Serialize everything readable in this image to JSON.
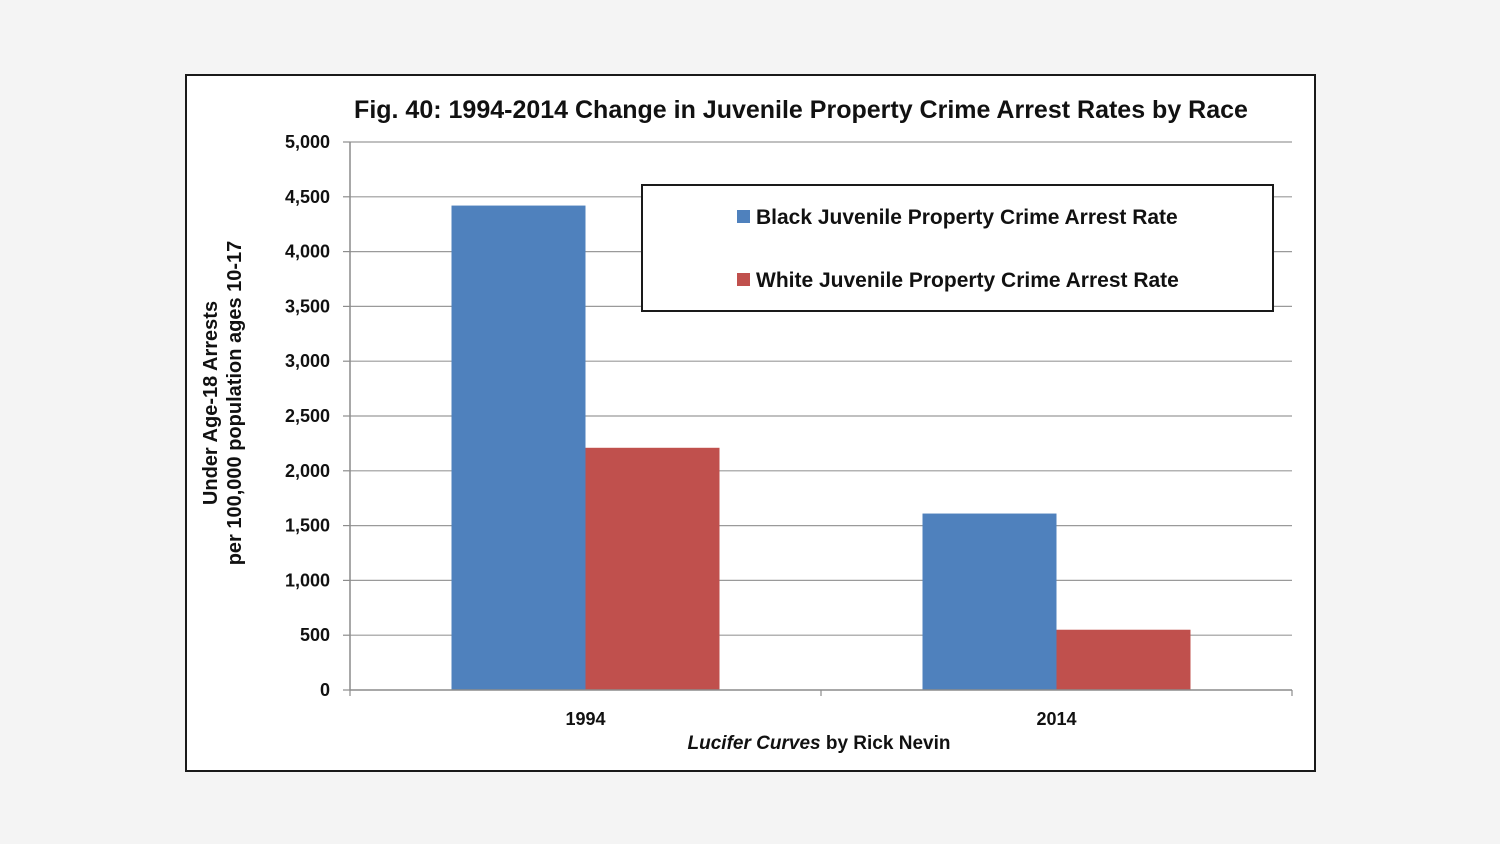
{
  "chart_data": {
    "type": "bar",
    "title": "Fig. 40: 1994-2014 Change in Juvenile Property Crime Arrest Rates by Race",
    "ylabel_line1": "Under Age-18 Arrests",
    "ylabel_line2": "per 100,000 population ages 10-17",
    "credit_italic": "Lucifer Curves",
    "credit_rest": " by Rick Nevin",
    "categories": [
      "1994",
      "2014"
    ],
    "ylim": [
      0,
      5000
    ],
    "yticks": [
      {
        "value": 0,
        "label": "0"
      },
      {
        "value": 500,
        "label": "500"
      },
      {
        "value": 1000,
        "label": "1,000"
      },
      {
        "value": 1500,
        "label": "1,500"
      },
      {
        "value": 2000,
        "label": "2,000"
      },
      {
        "value": 2500,
        "label": "2,500"
      },
      {
        "value": 3000,
        "label": "3,000"
      },
      {
        "value": 3500,
        "label": "3,500"
      },
      {
        "value": 4000,
        "label": "4,000"
      },
      {
        "value": 4500,
        "label": "4,500"
      },
      {
        "value": 5000,
        "label": "5,000"
      }
    ],
    "series": [
      {
        "name": "Black Juvenile Property Crime Arrest Rate",
        "color": "#4f81bd",
        "values": [
          4420,
          1610
        ]
      },
      {
        "name": "White Juvenile Property Crime Arrest Rate",
        "color": "#c0504d",
        "values": [
          2210,
          550
        ]
      }
    ],
    "grid": true,
    "legend_position": "top-right"
  }
}
